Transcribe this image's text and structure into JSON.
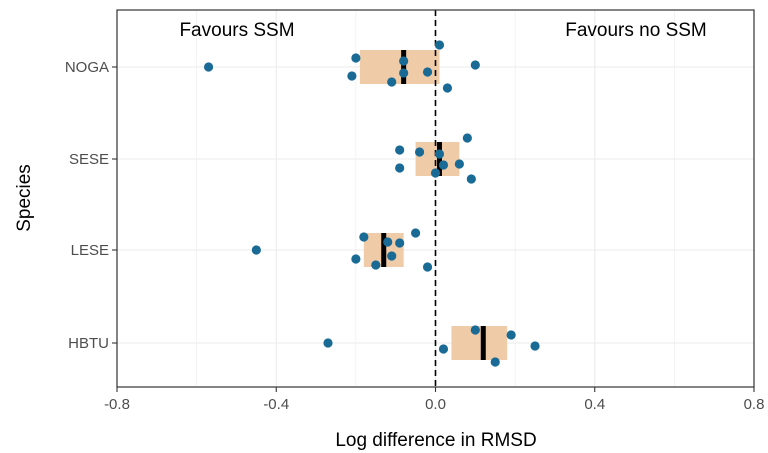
{
  "chart_data": {
    "type": "scatter",
    "xlabel": "Log difference in RMSD",
    "ylabel": "Species",
    "xlim": [
      -0.8,
      0.8
    ],
    "x_ticks": [
      -0.8,
      -0.4,
      0.0,
      0.4,
      0.8
    ],
    "x_tick_labels": [
      "-0.8",
      "-0.4",
      "0.0",
      "0.4",
      "0.8"
    ],
    "categories": [
      "NOGA",
      "SESE",
      "LESE",
      "HBTU"
    ],
    "reference_line": {
      "x": 0,
      "style": "dashed"
    },
    "annotations": [
      "Favours SSM",
      "Favours no SSM"
    ],
    "grid": true,
    "colors": {
      "point": "#1a6a96",
      "box": "#efcba7",
      "median": "#000000",
      "panel_border": "#333333",
      "grid": "#ebebeb"
    },
    "groups": [
      {
        "category": "NOGA",
        "box": {
          "q1": -0.19,
          "median": -0.08,
          "q3": 0.01
        },
        "points": [
          -0.57,
          -0.2,
          -0.21,
          -0.11,
          -0.08,
          -0.08,
          -0.02,
          0.01,
          0.03,
          0.1
        ]
      },
      {
        "category": "SESE",
        "box": {
          "q1": -0.05,
          "median": 0.01,
          "q3": 0.06
        },
        "points": [
          -0.09,
          -0.09,
          -0.04,
          0.0,
          0.01,
          0.02,
          0.06,
          0.08,
          0.09
        ]
      },
      {
        "category": "LESE",
        "box": {
          "q1": -0.18,
          "median": -0.13,
          "q3": -0.08
        },
        "points": [
          -0.45,
          -0.2,
          -0.18,
          -0.15,
          -0.12,
          -0.11,
          -0.09,
          -0.05,
          -0.02
        ]
      },
      {
        "category": "HBTU",
        "box": {
          "q1": 0.04,
          "median": 0.12,
          "q3": 0.18
        },
        "points": [
          -0.27,
          0.02,
          0.1,
          0.15,
          0.19,
          0.25
        ]
      }
    ]
  }
}
